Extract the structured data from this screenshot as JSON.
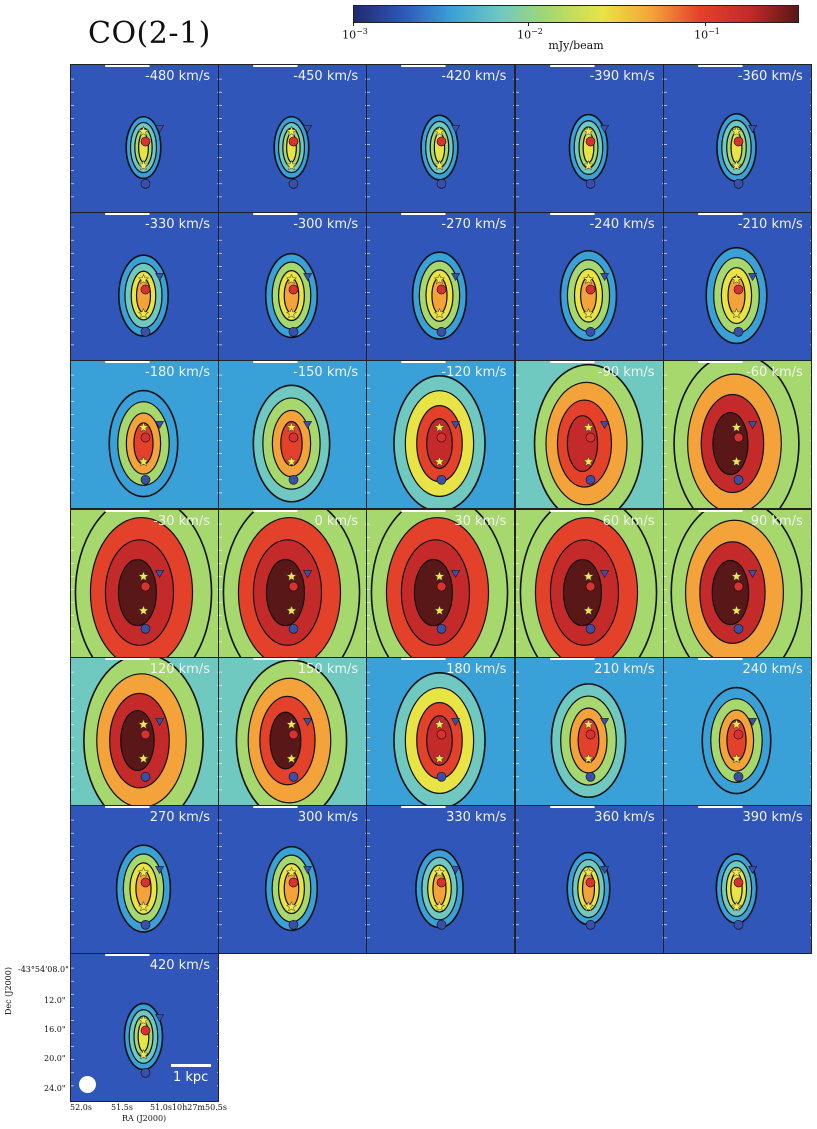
{
  "title": "CO(2-1)",
  "colorbar": {
    "label": "mJy/beam",
    "ticks": [
      {
        "base": "10",
        "exp": "−3"
      },
      {
        "base": "10",
        "exp": "−2"
      },
      {
        "base": "10",
        "exp": "−1"
      }
    ],
    "colors": [
      "#1f2a6e",
      "#2f56b8",
      "#3aa0d8",
      "#6fc9c0",
      "#a6d86e",
      "#e8e445",
      "#f3a33a",
      "#e3412a",
      "#c42a2a",
      "#5a1717"
    ]
  },
  "panels": [
    {
      "velocity": "-480 km/s",
      "intensity": 0.05
    },
    {
      "velocity": "-450 km/s",
      "intensity": 0.05
    },
    {
      "velocity": "-420 km/s",
      "intensity": 0.07
    },
    {
      "velocity": "-390 km/s",
      "intensity": 0.08
    },
    {
      "velocity": "-360 km/s",
      "intensity": 0.09
    },
    {
      "velocity": "-330 km/s",
      "intensity": 0.18
    },
    {
      "velocity": "-300 km/s",
      "intensity": 0.2
    },
    {
      "velocity": "-270 km/s",
      "intensity": 0.22
    },
    {
      "velocity": "-240 km/s",
      "intensity": 0.24
    },
    {
      "velocity": "-210 km/s",
      "intensity": 0.28
    },
    {
      "velocity": "-180 km/s",
      "intensity": 0.35
    },
    {
      "velocity": "-150 km/s",
      "intensity": 0.42
    },
    {
      "velocity": "-120 km/s",
      "intensity": 0.55
    },
    {
      "velocity": "-90 km/s",
      "intensity": 0.7
    },
    {
      "velocity": "-60 km/s",
      "intensity": 0.85
    },
    {
      "velocity": "-30 km/s",
      "intensity": 0.95
    },
    {
      "velocity": "0 km/s",
      "intensity": 0.95
    },
    {
      "velocity": "30 km/s",
      "intensity": 0.95
    },
    {
      "velocity": "60 km/s",
      "intensity": 0.95
    },
    {
      "velocity": "90 km/s",
      "intensity": 0.9
    },
    {
      "velocity": "120 km/s",
      "intensity": 0.8
    },
    {
      "velocity": "150 km/s",
      "intensity": 0.72
    },
    {
      "velocity": "180 km/s",
      "intensity": 0.55
    },
    {
      "velocity": "210 km/s",
      "intensity": 0.4
    },
    {
      "velocity": "240 km/s",
      "intensity": 0.35
    },
    {
      "velocity": "270 km/s",
      "intensity": 0.22
    },
    {
      "velocity": "300 km/s",
      "intensity": 0.2
    },
    {
      "velocity": "330 km/s",
      "intensity": 0.16
    },
    {
      "velocity": "360 km/s",
      "intensity": 0.12
    },
    {
      "velocity": "390 km/s",
      "intensity": 0.1
    },
    {
      "velocity": "420 km/s",
      "intensity": 0.08
    }
  ],
  "axes": {
    "ylabel": "Dec (J2000)",
    "xlabel": "RA (J2000)",
    "yticks": [
      "-43°54'08.0\"",
      "12.0\"",
      "16.0\"",
      "20.0\"",
      "24.0\""
    ],
    "xticks": [
      "52.0s",
      "51.5s",
      "51.0s10h27m50.5s"
    ]
  },
  "scalebar_label": "1 kpc",
  "markers": {
    "star_color": "#f5e94a",
    "red_circle_color": "#d93030",
    "blue_circle_color": "#3a4fa8",
    "triangle_color": "#3a4fa8"
  }
}
